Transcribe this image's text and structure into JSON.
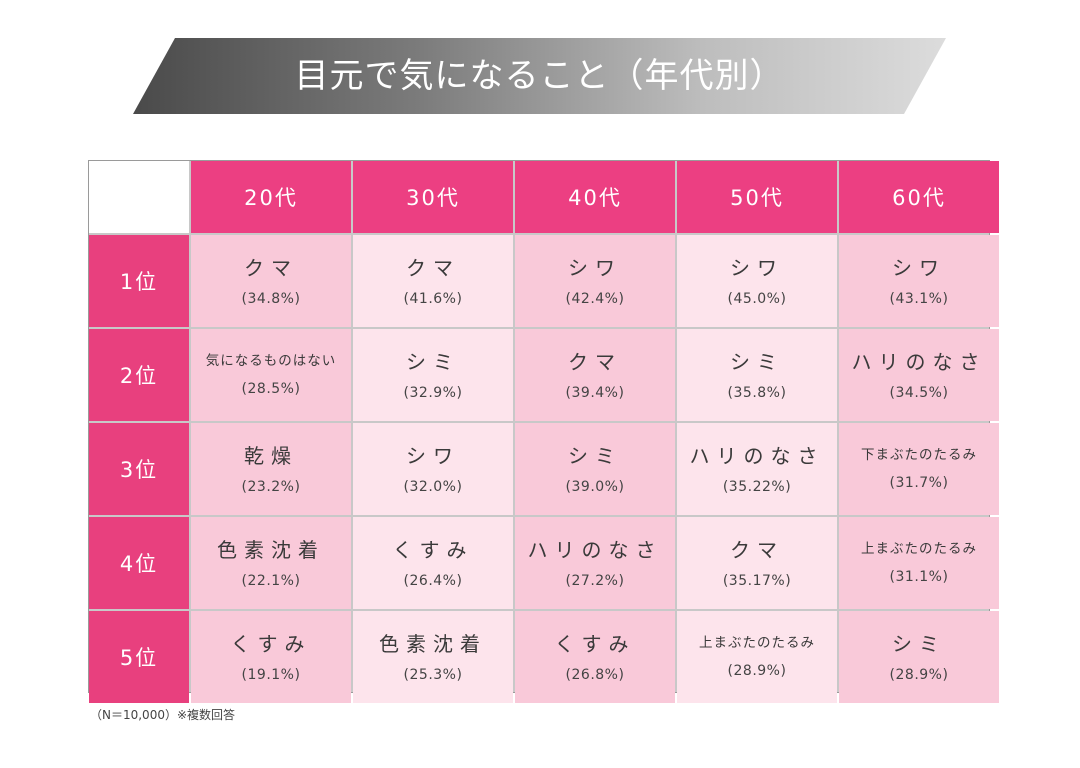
{
  "title": "目元で気になること（年代別）",
  "note": "（N＝10,000）※複数回答",
  "colors": {
    "header_pink": "#ec3f82",
    "cell_pink_dark": "#f9c9d9",
    "cell_pink_light": "#fde4ec"
  },
  "chart_data": {
    "type": "table",
    "columns": [
      "20代",
      "30代",
      "40代",
      "50代",
      "60代"
    ],
    "rows": [
      {
        "rank": "1位",
        "cells": [
          {
            "item": "クマ",
            "pct": "(34.8%)"
          },
          {
            "item": "クマ",
            "pct": "(41.6%)"
          },
          {
            "item": "シワ",
            "pct": "(42.4%)"
          },
          {
            "item": "シワ",
            "pct": "(45.0%)"
          },
          {
            "item": "シワ",
            "pct": "(43.1%)"
          }
        ]
      },
      {
        "rank": "2位",
        "cells": [
          {
            "item": "気になるものはない",
            "pct": "(28.5%)"
          },
          {
            "item": "シミ",
            "pct": "(32.9%)"
          },
          {
            "item": "クマ",
            "pct": "(39.4%)"
          },
          {
            "item": "シミ",
            "pct": "(35.8%)"
          },
          {
            "item": "ハリのなさ",
            "pct": "(34.5%)"
          }
        ]
      },
      {
        "rank": "3位",
        "cells": [
          {
            "item": "乾燥",
            "pct": "(23.2%)"
          },
          {
            "item": "シワ",
            "pct": "(32.0%)"
          },
          {
            "item": "シミ",
            "pct": "(39.0%)"
          },
          {
            "item": "ハリのなさ",
            "pct": "(35.22%)"
          },
          {
            "item": "下まぶたのたるみ",
            "pct": "(31.7%)"
          }
        ]
      },
      {
        "rank": "4位",
        "cells": [
          {
            "item": "色素沈着",
            "pct": "(22.1%)"
          },
          {
            "item": "くすみ",
            "pct": "(26.4%)"
          },
          {
            "item": "ハリのなさ",
            "pct": "(27.2%)"
          },
          {
            "item": "クマ",
            "pct": "(35.17%)"
          },
          {
            "item": "上まぶたのたるみ",
            "pct": "(31.1%)"
          }
        ]
      },
      {
        "rank": "5位",
        "cells": [
          {
            "item": "くすみ",
            "pct": "(19.1%)"
          },
          {
            "item": "色素沈着",
            "pct": "(25.3%)"
          },
          {
            "item": "くすみ",
            "pct": "(26.8%)"
          },
          {
            "item": "上まぶたのたるみ",
            "pct": "(28.9%)"
          },
          {
            "item": "シミ",
            "pct": "(28.9%)"
          }
        ]
      }
    ]
  }
}
